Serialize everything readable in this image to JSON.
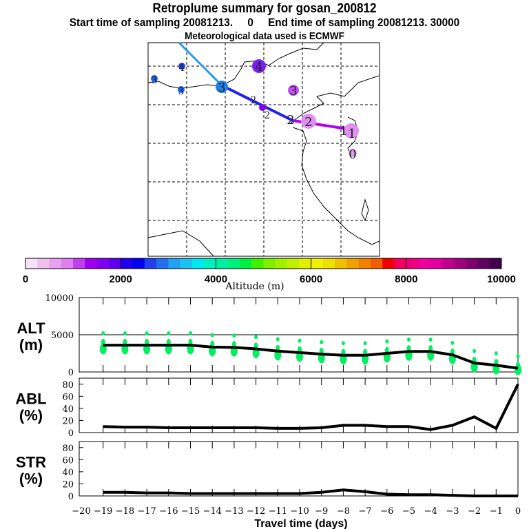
{
  "header": {
    "title": "Retroplume summary for gosan_200812",
    "subtitle": "Start time of sampling 20081213.     0     End time of sampling 20081213. 30000",
    "met": "Meteorological data used is ECMWF"
  },
  "colorbar": {
    "label": "Altitude (m)",
    "ticks": [
      "0",
      "2000",
      "4000",
      "6000",
      "8000",
      "10000"
    ],
    "colors": [
      "#f8e0f8",
      "#f0c0f0",
      "#e8a0f0",
      "#e080f0",
      "#c040f0",
      "#a000f0",
      "#8000f0",
      "#6000f0",
      "#2000f0",
      "#0000f0",
      "#2040f0",
      "#2070f0",
      "#20a0f0",
      "#20c0f0",
      "#00e8f0",
      "#00f0c0",
      "#00f0a0",
      "#00f080",
      "#00f040",
      "#40f000",
      "#80f000",
      "#a0f000",
      "#c0f000",
      "#e0f000",
      "#f0f000",
      "#f0e000",
      "#f0c000",
      "#f0a000",
      "#f08000",
      "#f06000",
      "#f00000",
      "#f00060",
      "#f00080",
      "#f000a0",
      "#e000a0",
      "#c00090",
      "#a00080",
      "#800070",
      "#600060",
      "#400050"
    ]
  },
  "map": {
    "labels": [
      "4",
      "4",
      "3",
      "3",
      "3",
      "3",
      "2",
      "2",
      "2",
      "2",
      "1",
      "1",
      "0"
    ]
  },
  "chart_data": [
    {
      "type": "line",
      "ylabel": "ALT\n(m)",
      "ylabel_top": "ALT",
      "ylabel_bottom": "(m)",
      "ylim": [
        0,
        10000
      ],
      "yticks": [
        "10000",
        "5000",
        "0"
      ],
      "x": [
        -19,
        -18,
        -17,
        -16,
        -15,
        -14,
        -13,
        -12,
        -11,
        -10,
        -9,
        -8,
        -7,
        -6,
        -5,
        -4,
        -3,
        -2,
        -1,
        0
      ],
      "values": [
        3600,
        3600,
        3600,
        3600,
        3600,
        3350,
        3300,
        3100,
        2800,
        2600,
        2400,
        2250,
        2250,
        2500,
        2750,
        2750,
        2300,
        1200,
        900,
        500
      ],
      "scatter_color": "#00f060"
    },
    {
      "type": "line",
      "ylabel_top": "ABL",
      "ylabel_bottom": "(%)",
      "ylim": [
        0,
        90
      ],
      "yticks": [
        "80",
        "60",
        "40",
        "20",
        "0"
      ],
      "x": [
        -19,
        -18,
        -17,
        -16,
        -15,
        -14,
        -13,
        -12,
        -11,
        -10,
        -9,
        -8,
        -7,
        -6,
        -5,
        -4,
        -3,
        -2,
        -1,
        0
      ],
      "values": [
        10,
        9,
        9,
        8,
        8,
        8,
        8,
        8,
        7,
        7,
        8,
        12,
        12,
        10,
        10,
        5,
        12,
        26,
        7,
        80
      ]
    },
    {
      "type": "line",
      "ylabel_top": "STR",
      "ylabel_bottom": "(%)",
      "ylim": [
        0,
        90
      ],
      "yticks": [
        "80",
        "60",
        "40",
        "20",
        "0"
      ],
      "x": [
        -19,
        -18,
        -17,
        -16,
        -15,
        -14,
        -13,
        -12,
        -11,
        -10,
        -9,
        -8,
        -7,
        -6,
        -5,
        -4,
        -3,
        -2,
        -1,
        0
      ],
      "values": [
        6,
        6,
        5,
        5,
        4,
        4,
        4,
        4,
        4,
        4,
        6,
        10,
        7,
        3,
        2,
        2,
        1,
        0,
        0,
        0
      ]
    }
  ],
  "xaxis": {
    "label": "Travel time (days)",
    "ticks": [
      "−20",
      "−19",
      "−18",
      "−17",
      "−16",
      "−15",
      "−14",
      "−13",
      "−12",
      "−11",
      "−10",
      "−9",
      "−8",
      "−7",
      "−6",
      "−5",
      "−4",
      "−3",
      "−2",
      "−1",
      "0"
    ]
  }
}
